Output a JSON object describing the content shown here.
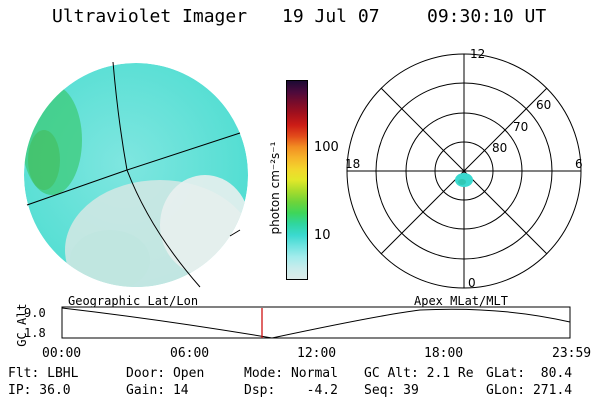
{
  "header": {
    "title": "Ultraviolet Imager",
    "date": "19 Jul 07",
    "time": "09:30:10 UT"
  },
  "colorbar": {
    "label": "photon cm⁻²s⁻¹",
    "ticks": [
      "100",
      "10"
    ],
    "colors": [
      "#dcebe9",
      "#c8ecec",
      "#a3ecec",
      "#6fe3e0",
      "#3ad9cf",
      "#2fd6a0",
      "#3ed65a",
      "#6ed43a",
      "#a8dc2c",
      "#e2e82a",
      "#f3d62c",
      "#f6b52a",
      "#f28e22",
      "#e24a1a",
      "#cc1c16",
      "#a4101c",
      "#7a0c2a",
      "#4c0a3c",
      "#1c0a34"
    ]
  },
  "polar": {
    "mlt_labels": {
      "top": "12",
      "left": "18",
      "right": "6",
      "bottom": "0"
    },
    "lat_labels": [
      "60",
      "70",
      "80"
    ]
  },
  "timeline": {
    "axis_label": "GC Alt",
    "y_ticks": [
      "9.0",
      "1.8"
    ],
    "left_title": "Geographic Lat/Lon",
    "right_title": "Apex MLat/MLT",
    "x_ticks": [
      "00:00",
      "06:00",
      "12:00",
      "18:00",
      "23:59"
    ]
  },
  "status": {
    "flt": "Flt: LBHL",
    "ip": "IP: 36.0",
    "door": "Door: Open",
    "gain": "Gain: 14",
    "mode": "Mode: Normal",
    "dsp": "Dsp:    -4.2",
    "gcalt": "GC Alt: 2.1 Re",
    "seq": "Seq: 39",
    "glat": "GLat:  80.4",
    "glon": "GLon: 271.4"
  }
}
